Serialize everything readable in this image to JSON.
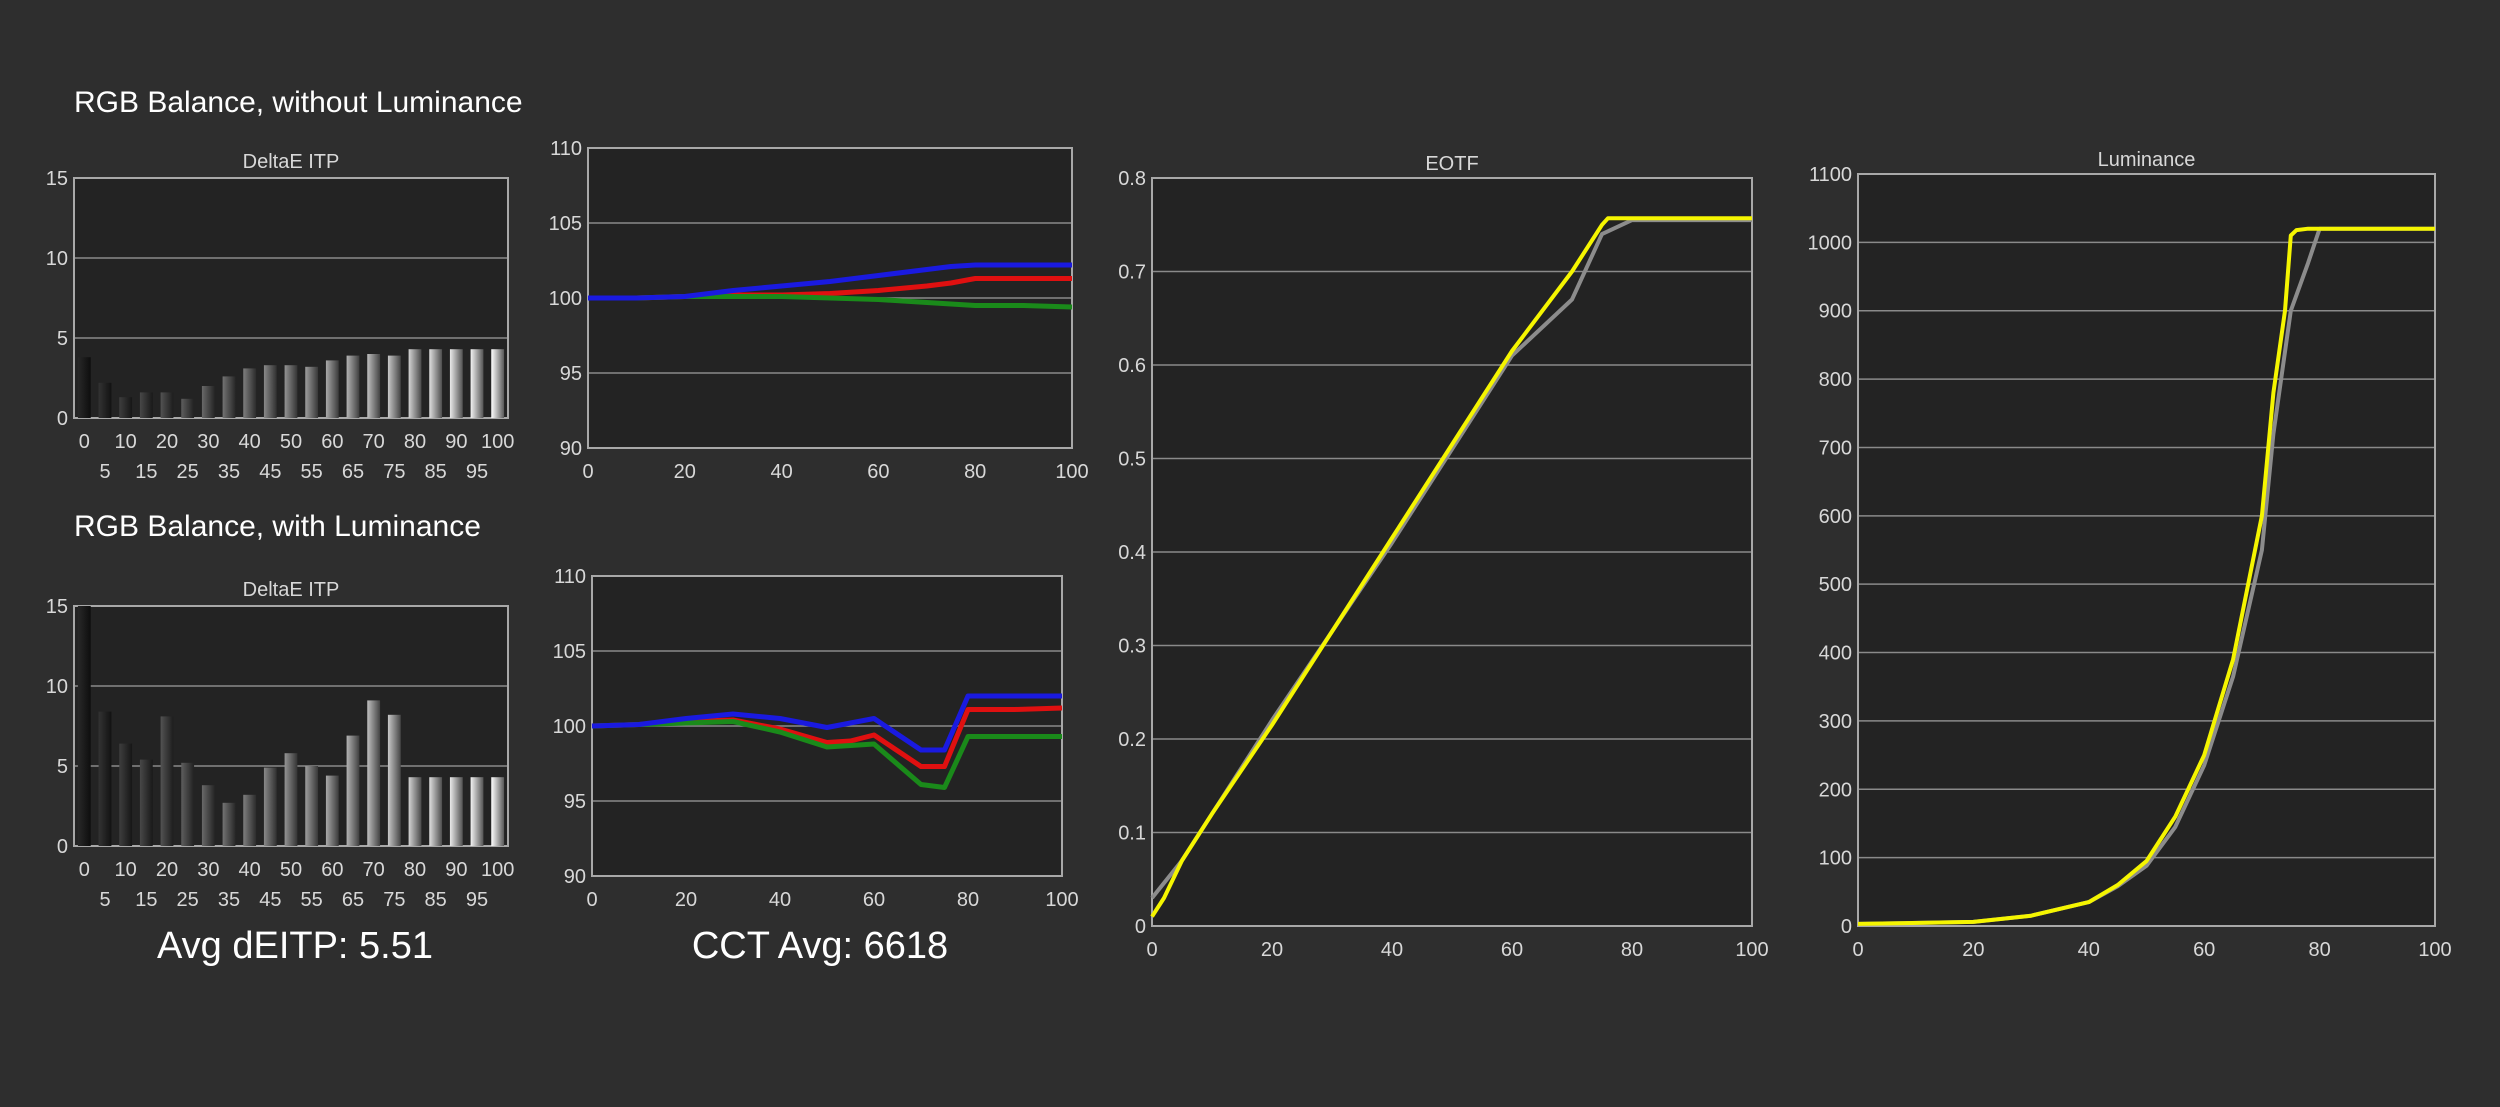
{
  "headings": {
    "without_lum": "RGB Balance, without Luminance",
    "with_lum": "RGB Balance, with Luminance"
  },
  "stats": {
    "avg_deitp": "Avg dEITP: 5.51",
    "cct_avg": "CCT Avg: 6618"
  },
  "colors": {
    "background": "#2e2e2e",
    "plot_bg": "#232323",
    "grid": "#8a8a8a",
    "red": "#e01010",
    "green": "#1a8a1a",
    "blue": "#1a1ae0",
    "measured": "#f5f500",
    "target": "#8c8c8c"
  },
  "chart_data": [
    {
      "id": "deitp_top",
      "type": "bar",
      "title": "DeltaE ITP",
      "categories_top": [
        "0",
        "10",
        "20",
        "30",
        "40",
        "50",
        "60",
        "70",
        "80",
        "90",
        "100"
      ],
      "categories_bottom": [
        "5",
        "15",
        "25",
        "35",
        "45",
        "55",
        "65",
        "75",
        "85",
        "95"
      ],
      "x": [
        0,
        5,
        10,
        15,
        20,
        25,
        30,
        35,
        40,
        45,
        50,
        55,
        60,
        65,
        70,
        75,
        80,
        85,
        90,
        95,
        100
      ],
      "values": [
        3.8,
        2.2,
        1.3,
        1.6,
        1.6,
        1.2,
        2.0,
        2.6,
        3.1,
        3.3,
        3.3,
        3.2,
        3.6,
        3.9,
        4.0,
        3.9,
        4.3,
        4.3,
        4.3,
        4.3,
        4.3
      ],
      "ylim": [
        0,
        15
      ],
      "yticks": [
        "0",
        "5",
        "10",
        "15"
      ]
    },
    {
      "id": "rgb_top",
      "type": "line",
      "x": [
        0,
        10,
        20,
        30,
        40,
        50,
        60,
        70,
        75,
        80,
        90,
        100
      ],
      "series": [
        {
          "color": "red",
          "values": [
            100,
            100,
            100.1,
            100.2,
            100.2,
            100.3,
            100.5,
            100.8,
            101.0,
            101.3,
            101.3,
            101.3
          ]
        },
        {
          "color": "green",
          "values": [
            100,
            100,
            100.1,
            100.1,
            100.1,
            100.0,
            99.9,
            99.7,
            99.6,
            99.5,
            99.5,
            99.4
          ]
        },
        {
          "color": "blue",
          "values": [
            100,
            100,
            100.1,
            100.5,
            100.8,
            101.1,
            101.5,
            101.9,
            102.1,
            102.2,
            102.2,
            102.2
          ]
        }
      ],
      "ylim": [
        90,
        110
      ],
      "yticks": [
        "90",
        "95",
        "100",
        "105",
        "110"
      ],
      "xticks": [
        "0",
        "20",
        "40",
        "60",
        "80",
        "100"
      ]
    },
    {
      "id": "deitp_bottom",
      "type": "bar",
      "title": "DeltaE ITP",
      "categories_top": [
        "0",
        "10",
        "20",
        "30",
        "40",
        "50",
        "60",
        "70",
        "80",
        "90",
        "100"
      ],
      "categories_bottom": [
        "5",
        "15",
        "25",
        "35",
        "45",
        "55",
        "65",
        "75",
        "85",
        "95"
      ],
      "x": [
        0,
        5,
        10,
        15,
        20,
        25,
        30,
        35,
        40,
        45,
        50,
        55,
        60,
        65,
        70,
        75,
        80,
        85,
        90,
        95,
        100
      ],
      "values": [
        15,
        8.4,
        6.4,
        5.4,
        8.1,
        5.2,
        3.8,
        2.7,
        3.2,
        4.9,
        5.8,
        5.0,
        4.4,
        6.9,
        9.1,
        8.2,
        4.3,
        4.3,
        4.3,
        4.3,
        4.3
      ],
      "ylim": [
        0,
        15
      ],
      "yticks": [
        "0",
        "5",
        "10",
        "15"
      ]
    },
    {
      "id": "rgb_bottom",
      "type": "line",
      "x": [
        0,
        10,
        20,
        30,
        40,
        50,
        55,
        60,
        70,
        75,
        80,
        90,
        100
      ],
      "series": [
        {
          "color": "red",
          "values": [
            100,
            100.1,
            100.3,
            100.4,
            99.8,
            98.9,
            99.0,
            99.4,
            97.3,
            97.3,
            101.1,
            101.1,
            101.2
          ]
        },
        {
          "color": "green",
          "values": [
            100,
            100.1,
            100.2,
            100.3,
            99.6,
            98.6,
            98.7,
            98.8,
            96.1,
            95.9,
            99.3,
            99.3,
            99.3
          ]
        },
        {
          "color": "blue",
          "values": [
            100,
            100.1,
            100.5,
            100.8,
            100.5,
            99.9,
            100.2,
            100.5,
            98.4,
            98.4,
            102.0,
            102.0,
            102.0
          ]
        }
      ],
      "ylim": [
        90,
        110
      ],
      "yticks": [
        "90",
        "95",
        "100",
        "105",
        "110"
      ],
      "xticks": [
        "0",
        "20",
        "40",
        "60",
        "80",
        "100"
      ]
    },
    {
      "id": "eotf",
      "type": "line",
      "title": "EOTF",
      "x": [
        0,
        5,
        10,
        20,
        30,
        40,
        50,
        60,
        70,
        75,
        78,
        80,
        90,
        100
      ],
      "series": [
        {
          "color": "target",
          "x": [
            0,
            5,
            10,
            20,
            30,
            40,
            50,
            60,
            70,
            75,
            80,
            100
          ],
          "values": [
            0.03,
            0.07,
            0.12,
            0.22,
            0.315,
            0.41,
            0.51,
            0.61,
            0.67,
            0.74,
            0.755,
            0.755
          ]
        },
        {
          "color": "measured",
          "x": [
            0,
            2,
            5,
            10,
            20,
            30,
            40,
            50,
            60,
            70,
            75,
            76,
            78,
            100
          ],
          "values": [
            0.01,
            0.03,
            0.07,
            0.12,
            0.215,
            0.315,
            0.415,
            0.515,
            0.615,
            0.7,
            0.75,
            0.757,
            0.757,
            0.757
          ]
        }
      ],
      "ylim": [
        0,
        0.8
      ],
      "yticks": [
        "0",
        "0.1",
        "0.2",
        "0.3",
        "0.4",
        "0.5",
        "0.6",
        "0.7",
        "0.8"
      ],
      "xticks": [
        "0",
        "20",
        "40",
        "60",
        "80",
        "100"
      ]
    },
    {
      "id": "luminance",
      "type": "line",
      "title": "Luminance",
      "series": [
        {
          "color": "target",
          "x": [
            0,
            20,
            30,
            40,
            45,
            50,
            55,
            60,
            65,
            70,
            72,
            75,
            78,
            80,
            100
          ],
          "values": [
            3,
            6,
            15,
            35,
            58,
            88,
            145,
            235,
            365,
            550,
            720,
            900,
            970,
            1020,
            1020
          ]
        },
        {
          "color": "measured",
          "x": [
            0,
            20,
            30,
            40,
            45,
            50,
            55,
            60,
            65,
            70,
            72,
            74,
            75,
            76,
            78,
            80,
            100
          ],
          "values": [
            3,
            6,
            15,
            35,
            60,
            95,
            160,
            250,
            390,
            600,
            780,
            900,
            1010,
            1018,
            1020,
            1020,
            1020
          ]
        }
      ],
      "ylim": [
        0,
        1100
      ],
      "yticks": [
        "0",
        "100",
        "200",
        "300",
        "400",
        "500",
        "600",
        "700",
        "800",
        "900",
        "1000",
        "1100"
      ],
      "xticks": [
        "0",
        "20",
        "40",
        "60",
        "80",
        "100"
      ]
    }
  ]
}
